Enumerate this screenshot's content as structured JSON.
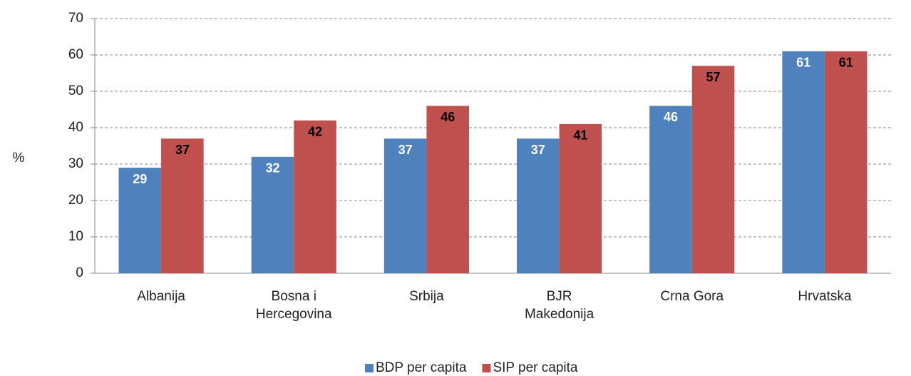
{
  "chart_data": {
    "type": "bar",
    "ylabel": "%",
    "categories": [
      "Albanija",
      "Bosna i\nHercegovina",
      "Srbija",
      "BJR\nMakedonija",
      "Crna Gora",
      "Hrvatska"
    ],
    "series": [
      {
        "name": "BDP per capita",
        "color": "#4f81bd",
        "values": [
          29,
          32,
          37,
          37,
          46,
          61
        ]
      },
      {
        "name": "SIP per capita",
        "color": "#c0504d",
        "values": [
          37,
          42,
          46,
          41,
          57,
          61
        ]
      }
    ],
    "ylim": [
      0,
      70
    ],
    "yticks": [
      0,
      10,
      20,
      30,
      40,
      50,
      60,
      70
    ],
    "grid": true,
    "legend": "bottom"
  }
}
